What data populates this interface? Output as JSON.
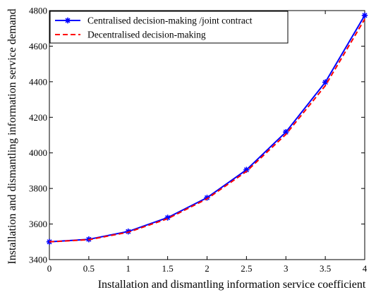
{
  "chart_data": {
    "type": "line",
    "xlabel": "Installation and dismantling information service coefficient",
    "ylabel": "Installation and dismantling information service demand",
    "xlim": [
      0,
      4
    ],
    "ylim": [
      3400,
      4800
    ],
    "xticks": [
      0,
      0.5,
      1,
      1.5,
      2,
      2.5,
      3,
      3.5,
      4
    ],
    "yticks": [
      3400,
      3600,
      3800,
      4000,
      4200,
      4400,
      4600,
      4800
    ],
    "grid": false,
    "legend_position": "top-left",
    "x": [
      0,
      0.5,
      1,
      1.5,
      2,
      2.5,
      3,
      3.5,
      4
    ],
    "series": [
      {
        "name": "Centralised decision-making /joint contract",
        "color": "#0000ff",
        "line_style": "solid",
        "marker": "asterisk",
        "values": [
          3500,
          3514,
          3558,
          3636,
          3748,
          3905,
          4117,
          4397,
          4773
        ]
      },
      {
        "name": "Decentralised decision-making",
        "color": "#ff0000",
        "line_style": "dashed",
        "marker": "none",
        "values": [
          3500,
          3512,
          3554,
          3630,
          3742,
          3896,
          4104,
          4378,
          4752
        ]
      }
    ]
  }
}
